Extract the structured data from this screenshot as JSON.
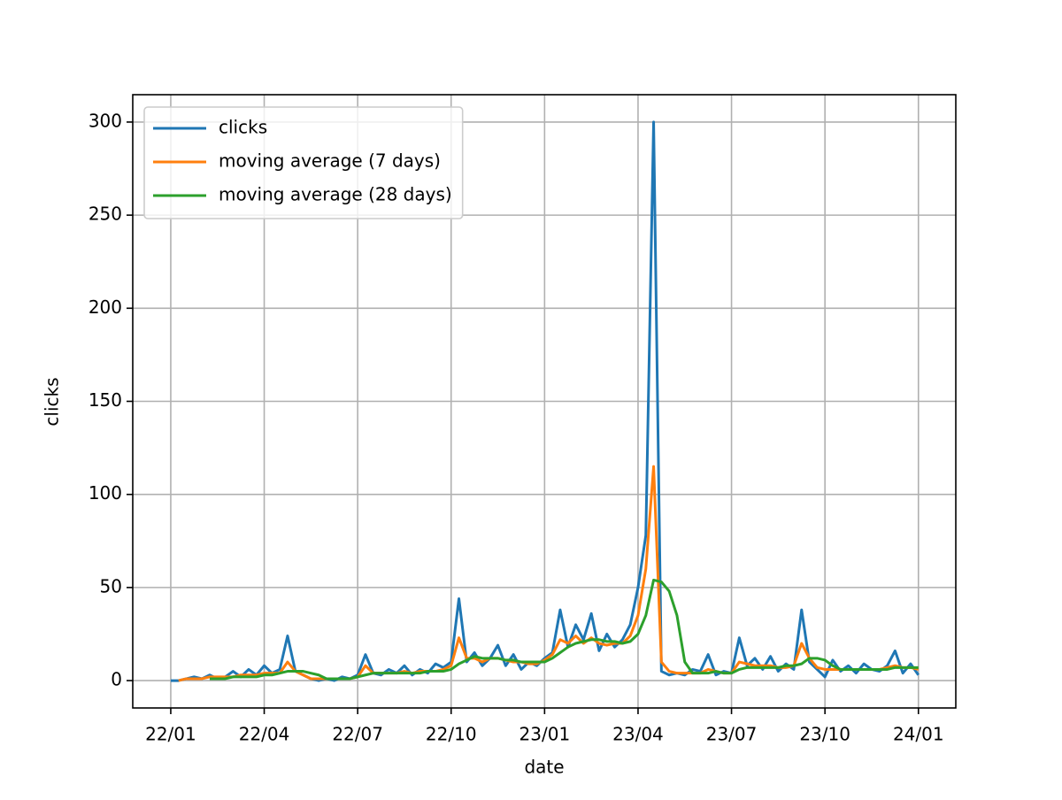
{
  "chart_data": {
    "type": "line",
    "xlabel": "date",
    "ylabel": "clicks",
    "x": [
      0,
      0.25,
      0.5,
      0.75,
      1,
      1.25,
      1.5,
      1.75,
      2,
      2.25,
      2.5,
      2.75,
      3,
      3.25,
      3.5,
      3.75,
      4,
      4.25,
      4.5,
      4.75,
      5,
      5.25,
      5.5,
      5.75,
      6,
      6.25,
      6.5,
      6.75,
      7,
      7.25,
      7.5,
      7.75,
      8,
      8.25,
      8.5,
      8.75,
      9,
      9.25,
      9.5,
      9.75,
      10,
      10.25,
      10.5,
      10.75,
      11,
      11.25,
      11.5,
      11.75,
      12,
      12.25,
      12.5,
      12.75,
      13,
      13.25,
      13.5,
      13.75,
      14,
      14.25,
      14.5,
      14.75,
      15,
      15.25,
      15.5,
      15.75,
      16,
      16.25,
      16.5,
      16.75,
      17,
      17.25,
      17.5,
      17.75,
      18,
      18.25,
      18.5,
      18.75,
      19,
      19.25,
      19.5,
      19.75,
      20,
      20.25,
      20.5,
      20.75,
      21,
      21.25,
      21.5,
      21.75,
      22,
      22.25,
      22.5,
      22.75,
      23,
      23.25,
      23.5,
      23.75,
      24
    ],
    "series": [
      {
        "name": "clicks",
        "color": "#1f77b4",
        "values": [
          0,
          0,
          1,
          2,
          1,
          3,
          1,
          2,
          5,
          2,
          6,
          3,
          8,
          4,
          6,
          24,
          5,
          3,
          1,
          0,
          1,
          0,
          2,
          1,
          3,
          14,
          4,
          3,
          6,
          4,
          8,
          3,
          6,
          4,
          9,
          7,
          10,
          44,
          10,
          15,
          8,
          12,
          19,
          8,
          14,
          6,
          10,
          8,
          12,
          15,
          38,
          18,
          30,
          22,
          36,
          16,
          25,
          18,
          22,
          30,
          50,
          78,
          300,
          5,
          3,
          4,
          3,
          6,
          5,
          14,
          3,
          5,
          4,
          23,
          8,
          12,
          6,
          13,
          5,
          9,
          6,
          38,
          10,
          6,
          2,
          11,
          5,
          8,
          4,
          9,
          6,
          5,
          8,
          16,
          4,
          9,
          3
        ]
      },
      {
        "name": "moving average (7 days)",
        "color": "#ff7f0e",
        "values": [
          null,
          0,
          1,
          1,
          1,
          2,
          2,
          2,
          2,
          3,
          3,
          3,
          4,
          4,
          4,
          10,
          5,
          3,
          1,
          1,
          1,
          1,
          1,
          1,
          2,
          8,
          4,
          4,
          4,
          4,
          5,
          4,
          5,
          5,
          5,
          6,
          8,
          23,
          12,
          12,
          10,
          12,
          12,
          11,
          10,
          10,
          9,
          9,
          11,
          14,
          22,
          20,
          24,
          20,
          23,
          20,
          19,
          20,
          20,
          24,
          35,
          60,
          115,
          10,
          5,
          4,
          4,
          4,
          4,
          6,
          5,
          4,
          4,
          10,
          9,
          8,
          8,
          8,
          7,
          7,
          8,
          20,
          12,
          7,
          6,
          6,
          6,
          6,
          6,
          6,
          6,
          6,
          7,
          8,
          7,
          7,
          6
        ]
      },
      {
        "name": "moving average (28 days)",
        "color": "#2ca02c",
        "values": [
          null,
          null,
          null,
          null,
          null,
          1,
          1,
          1,
          2,
          2,
          2,
          2,
          3,
          3,
          4,
          5,
          5,
          5,
          4,
          3,
          1,
          1,
          1,
          1,
          2,
          3,
          4,
          4,
          4,
          4,
          4,
          4,
          4,
          5,
          5,
          5,
          6,
          9,
          11,
          13,
          12,
          12,
          12,
          11,
          11,
          10,
          10,
          10,
          10,
          12,
          15,
          18,
          20,
          21,
          22,
          22,
          21,
          21,
          20,
          21,
          25,
          35,
          54,
          53,
          48,
          35,
          10,
          4,
          4,
          4,
          5,
          4,
          4,
          6,
          7,
          7,
          7,
          7,
          7,
          8,
          8,
          9,
          12,
          12,
          11,
          8,
          6,
          6,
          6,
          6,
          6,
          6,
          6,
          7,
          7,
          7,
          7
        ]
      }
    ],
    "xlim": [
      -1.22,
      25.2
    ],
    "xticks": [
      {
        "value": 0,
        "label": "22/01"
      },
      {
        "value": 3,
        "label": "22/04"
      },
      {
        "value": 6,
        "label": "22/07"
      },
      {
        "value": 9,
        "label": "22/10"
      },
      {
        "value": 12,
        "label": "23/01"
      },
      {
        "value": 15,
        "label": "23/04"
      },
      {
        "value": 18,
        "label": "23/07"
      },
      {
        "value": 21,
        "label": "23/10"
      },
      {
        "value": 24,
        "label": "24/01"
      }
    ],
    "ylim": [
      -14.7,
      314.7
    ],
    "yticks": [
      0,
      50,
      100,
      150,
      200,
      250,
      300
    ],
    "grid": true,
    "legend": "upper left"
  }
}
